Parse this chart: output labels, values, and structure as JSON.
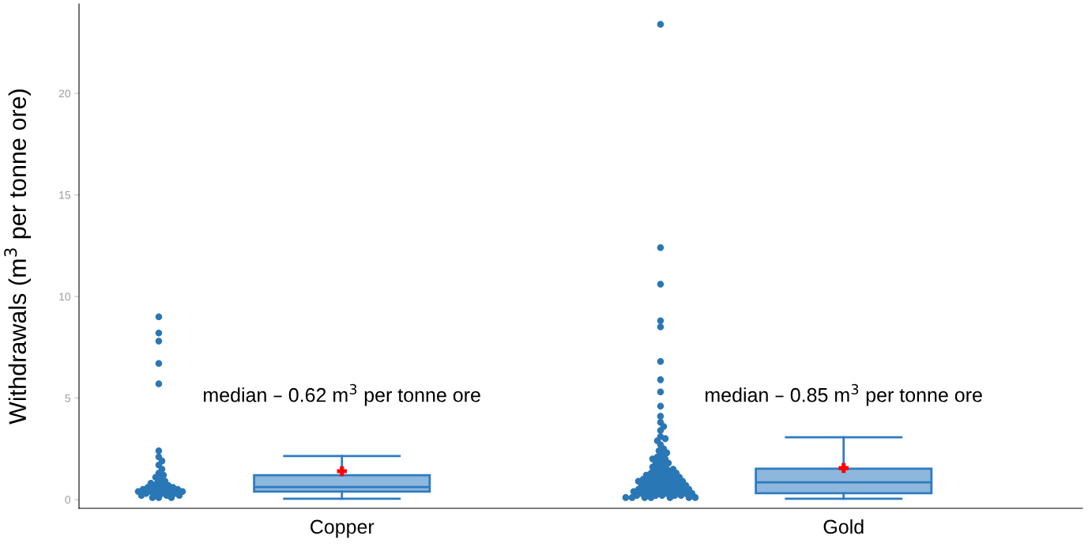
{
  "chart_data": {
    "type": "box",
    "ylabel": "Withdrawals (m$^{3}$ per tonne ore)",
    "categories": [
      "Copper",
      "Gold"
    ],
    "color": "#2f7bbf",
    "boxes": [
      {
        "low": 0.04,
        "q1": 0.39,
        "median": 0.62,
        "q3": 1.2,
        "high": 2.14,
        "mean": 1.4
      },
      {
        "low": 0.04,
        "q1": 0.31,
        "median": 0.85,
        "q3": 1.52,
        "high": 3.07,
        "mean": 1.55
      }
    ],
    "series": [
      {
        "type": "scatter",
        "color": "#2a77b6",
        "x": [
          "Copper",
          "Copper",
          "Copper",
          "Copper",
          "Copper",
          "Copper",
          "Copper",
          "Copper",
          "Copper",
          "Copper",
          "Copper",
          "Copper",
          "Copper",
          "Copper",
          "Copper",
          "Copper",
          "Copper",
          "Copper",
          "Copper",
          "Copper",
          "Copper",
          "Copper",
          "Copper",
          "Copper",
          "Copper",
          "Copper",
          "Copper",
          "Copper",
          "Copper",
          "Copper",
          "Copper",
          "Copper",
          "Copper",
          "Copper",
          "Copper",
          "Copper",
          "Copper",
          "Copper",
          "Copper",
          "Copper"
        ],
        "values": [
          9.0,
          8.2,
          7.8,
          6.7,
          5.7,
          2.4,
          2.1,
          1.9,
          1.7,
          1.5,
          1.3,
          1.2,
          1.1,
          1.0,
          0.9,
          0.8,
          0.8,
          0.7,
          0.7,
          0.6,
          0.6,
          0.6,
          0.5,
          0.5,
          0.5,
          0.5,
          0.4,
          0.4,
          0.4,
          0.4,
          0.3,
          0.3,
          0.3,
          0.3,
          0.2,
          0.2,
          0.2,
          0.1,
          0.1,
          0.1
        ]
      },
      {
        "type": "scatter",
        "color": "#2a77b6",
        "x": [
          "Gold",
          "Gold",
          "Gold",
          "Gold",
          "Gold",
          "Gold",
          "Gold",
          "Gold",
          "Gold",
          "Gold",
          "Gold",
          "Gold",
          "Gold",
          "Gold",
          "Gold",
          "Gold",
          "Gold",
          "Gold",
          "Gold",
          "Gold",
          "Gold",
          "Gold",
          "Gold",
          "Gold",
          "Gold",
          "Gold",
          "Gold",
          "Gold",
          "Gold",
          "Gold",
          "Gold",
          "Gold",
          "Gold",
          "Gold",
          "Gold",
          "Gold",
          "Gold",
          "Gold",
          "Gold",
          "Gold",
          "Gold",
          "Gold",
          "Gold",
          "Gold",
          "Gold",
          "Gold",
          "Gold",
          "Gold",
          "Gold",
          "Gold",
          "Gold",
          "Gold",
          "Gold",
          "Gold",
          "Gold",
          "Gold",
          "Gold",
          "Gold",
          "Gold",
          "Gold",
          "Gold",
          "Gold",
          "Gold",
          "Gold",
          "Gold",
          "Gold",
          "Gold",
          "Gold",
          "Gold",
          "Gold",
          "Gold",
          "Gold",
          "Gold",
          "Gold",
          "Gold",
          "Gold",
          "Gold",
          "Gold",
          "Gold",
          "Gold",
          "Gold",
          "Gold",
          "Gold",
          "Gold",
          "Gold",
          "Gold",
          "Gold",
          "Gold",
          "Gold",
          "Gold"
        ],
        "values": [
          23.4,
          12.4,
          10.6,
          8.8,
          8.5,
          6.8,
          5.9,
          5.3,
          4.6,
          4.1,
          3.8,
          3.6,
          3.4,
          3.1,
          3.0,
          2.9,
          2.7,
          2.5,
          2.4,
          2.3,
          2.2,
          2.1,
          2.0,
          2.0,
          1.9,
          1.8,
          1.8,
          1.7,
          1.6,
          1.6,
          1.5,
          1.5,
          1.4,
          1.4,
          1.3,
          1.3,
          1.3,
          1.2,
          1.2,
          1.2,
          1.1,
          1.1,
          1.1,
          1.0,
          1.0,
          1.0,
          1.0,
          0.9,
          0.9,
          0.9,
          0.9,
          0.8,
          0.8,
          0.8,
          0.8,
          0.7,
          0.7,
          0.7,
          0.7,
          0.6,
          0.6,
          0.6,
          0.6,
          0.5,
          0.5,
          0.5,
          0.5,
          0.5,
          0.4,
          0.4,
          0.4,
          0.4,
          0.4,
          0.3,
          0.3,
          0.3,
          0.3,
          0.3,
          0.2,
          0.2,
          0.2,
          0.2,
          0.2,
          0.1,
          0.1,
          0.1,
          0.1,
          0.1,
          0.1,
          0.1
        ]
      }
    ],
    "ylim": [
      -0.43,
      24.4
    ],
    "yticks": [
      0,
      5,
      10,
      15,
      20
    ],
    "annotations": [
      "median – 0.62 m$^{3}$ per tonne ore",
      "median – 0.85 m$^{3}$ per tonne ore"
    ],
    "grid": false,
    "legend": false
  }
}
